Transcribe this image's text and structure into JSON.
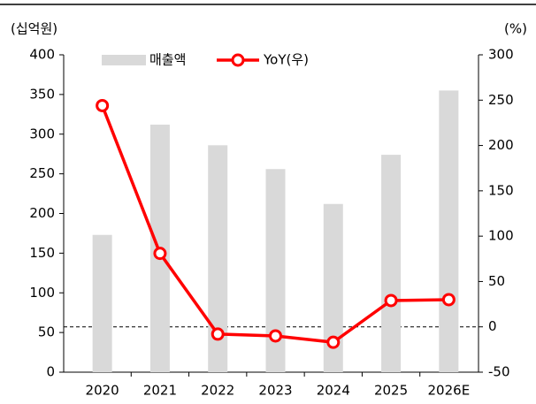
{
  "chart_data": {
    "type": "bar+line",
    "y_label": "(십억원)",
    "y2_label": "(%)",
    "categories": [
      "2020",
      "2021",
      "2022",
      "2023",
      "2024",
      "2025",
      "2026E"
    ],
    "series": [
      {
        "name": "매출액",
        "type": "bar",
        "color": "#d9d9d9",
        "values": [
          173,
          312,
          286,
          256,
          212,
          274,
          355
        ]
      },
      {
        "name": "YoY(우)",
        "type": "line",
        "axis": "y2",
        "color": "#ff0000",
        "values": [
          244,
          81,
          -8,
          -10,
          -17,
          29,
          30
        ]
      }
    ],
    "ylim": [
      0,
      400
    ],
    "yticks": [
      0,
      50,
      100,
      150,
      200,
      250,
      300,
      350,
      400
    ],
    "y2lim": [
      -50,
      300
    ],
    "y2ticks": [
      -50,
      0,
      50,
      100,
      150,
      200,
      250,
      300
    ],
    "legend": "top"
  }
}
